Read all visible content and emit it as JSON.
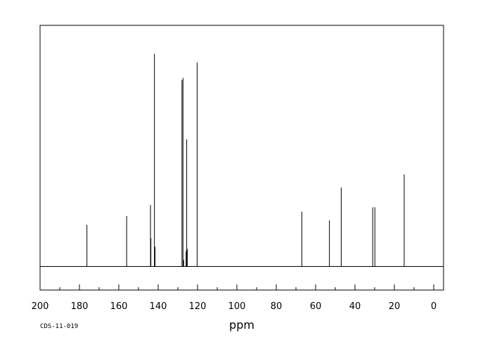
{
  "chart_data": {
    "type": "line",
    "xlabel": "ppm",
    "ylabel": "",
    "xlim": [
      200,
      0
    ],
    "x_ticks": [
      200,
      180,
      160,
      140,
      120,
      100,
      80,
      60,
      40,
      20,
      0
    ],
    "x_tick_labels": [
      "200",
      "180",
      "160",
      "140",
      "120",
      "100",
      "80",
      "60",
      "40",
      "20",
      "0"
    ],
    "grid": false,
    "peaks": [
      {
        "ppm": 176.2,
        "intensity": 0.19
      },
      {
        "ppm": 156.0,
        "intensity": 0.23
      },
      {
        "ppm": 143.9,
        "intensity": 0.28
      },
      {
        "ppm": 143.7,
        "intensity": 0.13
      },
      {
        "ppm": 141.9,
        "intensity": 0.97
      },
      {
        "ppm": 141.6,
        "intensity": 0.09
      },
      {
        "ppm": 127.9,
        "intensity": 0.85
      },
      {
        "ppm": 127.4,
        "intensity": 0.86
      },
      {
        "ppm": 127.0,
        "intensity": 0.03
      },
      {
        "ppm": 125.8,
        "intensity": 0.07
      },
      {
        "ppm": 125.5,
        "intensity": 0.58
      },
      {
        "ppm": 125.2,
        "intensity": 0.08
      },
      {
        "ppm": 120.2,
        "intensity": 0.93
      },
      {
        "ppm": 67.0,
        "intensity": 0.25
      },
      {
        "ppm": 53.0,
        "intensity": 0.21
      },
      {
        "ppm": 47.0,
        "intensity": 0.36
      },
      {
        "ppm": 31.0,
        "intensity": 0.27
      },
      {
        "ppm": 29.9,
        "intensity": 0.27
      },
      {
        "ppm": 15.0,
        "intensity": 0.42
      }
    ]
  },
  "sample_code": "CDS-11-019"
}
